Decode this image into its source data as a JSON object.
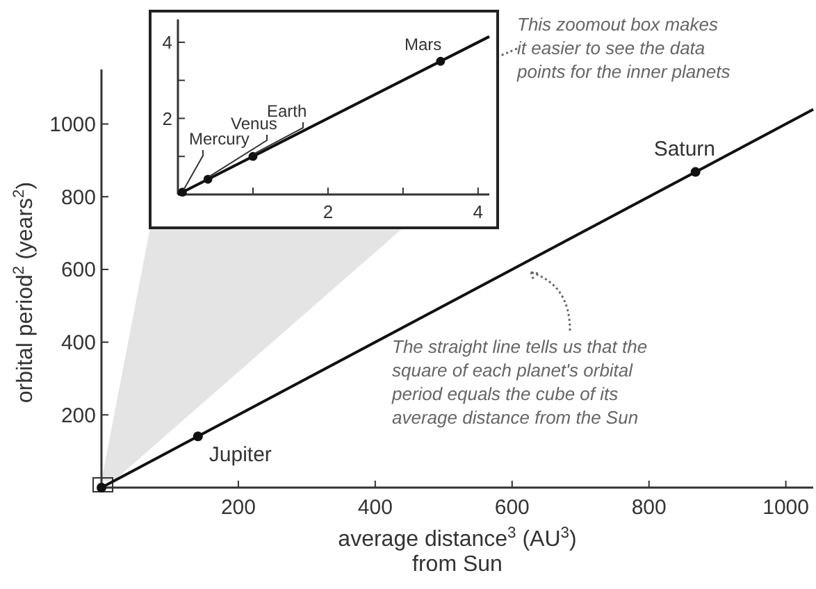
{
  "chart_data": [
    {
      "type": "scatter",
      "xlabel": "average distance$^{3}$ (AU$^{3}$)\nfrom Sun",
      "ylabel": "orbital period$^{2}$ (years$^{2}$)",
      "xlim": [
        0,
        1040
      ],
      "ylim": [
        0,
        1150
      ],
      "xticks": [
        200,
        400,
        600,
        800,
        1000
      ],
      "yticks": [
        200,
        400,
        600,
        800,
        1000
      ],
      "series": [
        {
          "type": "line",
          "color": "#111111",
          "marker": "none",
          "x": [
            0,
            1040
          ],
          "values": [
            0,
            1040
          ]
        },
        {
          "type": "scatter",
          "color": "#111111",
          "marker": "circle",
          "x": [
            0,
            141,
            868
          ],
          "values": [
            0,
            141,
            868
          ]
        }
      ],
      "annotations": [
        {
          "text": "Jupiter",
          "x": 141,
          "y": 141
        },
        {
          "text": "Saturn",
          "x": 868,
          "y": 868
        },
        "The straight line tells us that the\nsquare of each planet's orbital\nperiod equals the cube of its\naverage distance from the Sun",
        "This zoomout box makes\nit easier to see the data\npoints for the inner planets"
      ]
    },
    {
      "type": "scatter",
      "xlim": [
        0,
        4.15
      ],
      "ylim": [
        0,
        4.6
      ],
      "xticks": [
        {
          "value": 1,
          "label": null
        },
        2,
        {
          "value": 3,
          "label": null
        },
        4
      ],
      "yticks": [
        {
          "value": 1,
          "label": null
        },
        2,
        {
          "value": 3,
          "label": null
        },
        4
      ],
      "series": [
        {
          "type": "line",
          "color": "#111111",
          "marker": "none",
          "x": [
            0,
            4.15
          ],
          "values": [
            0,
            4.15
          ]
        },
        {
          "type": "scatter",
          "color": "#111111",
          "marker": "circle",
          "x": [
            0.06,
            0.4,
            1,
            3.5
          ],
          "values": [
            0.06,
            0.4,
            1,
            3.5
          ]
        }
      ],
      "annotations": [
        {
          "text": "Mercury",
          "x": 0.06,
          "y": 0.06
        },
        {
          "text": "Venus",
          "x": 0.4,
          "y": 0.4
        },
        {
          "text": "Earth",
          "x": 1,
          "y": 1
        },
        {
          "text": "Mars",
          "x": 3.5,
          "y": 3.5
        }
      ]
    }
  ]
}
